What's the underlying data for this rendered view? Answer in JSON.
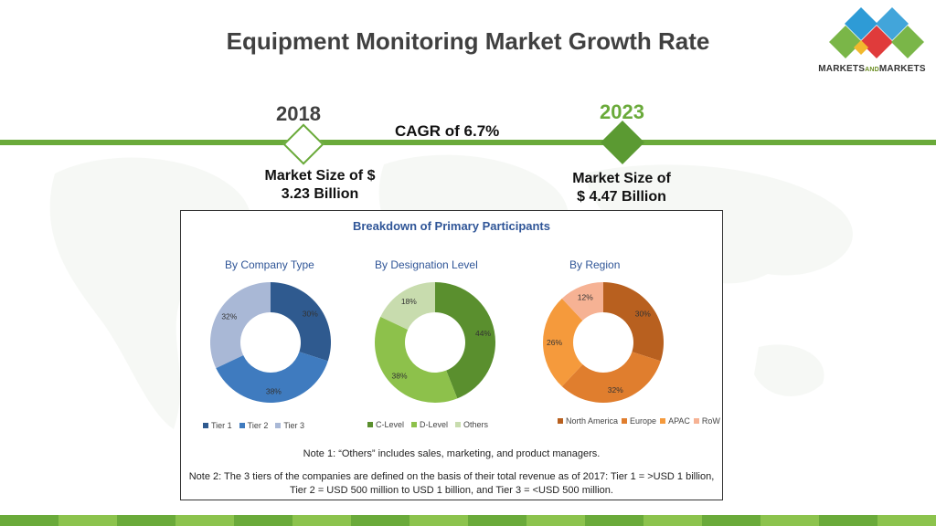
{
  "title": "Equipment Monitoring Market Growth Rate",
  "logo": {
    "brand_a": "MARKETS",
    "brand_b": "AND",
    "brand_c": "MARKETS",
    "colors": [
      "#2e9bd6",
      "#e03b3b",
      "#7ab648",
      "#f2b92e"
    ]
  },
  "timeline": {
    "start_year": "2018",
    "end_year": "2023",
    "cagr": "CAGR of 6.7%",
    "start_size_line1": "Market Size of $",
    "start_size_line2": "3.23 Billion",
    "end_size_line1": "Market Size of",
    "end_size_line2": "$ 4.47 Billion"
  },
  "chart_data": {
    "title": "Breakdown of Primary Participants",
    "charts": [
      {
        "type": "pie",
        "subtitle": "By Company Type",
        "categories": [
          "Tier 1",
          "Tier 2",
          "Tier 3"
        ],
        "values": [
          30,
          38,
          32
        ],
        "labels": [
          "30%",
          "38%",
          "32%"
        ],
        "colors": [
          "#2f5a8f",
          "#3f7bbf",
          "#a9b8d6"
        ]
      },
      {
        "type": "pie",
        "subtitle": "By Designation Level",
        "categories": [
          "C-Level",
          "D-Level",
          "Others"
        ],
        "values": [
          44,
          38,
          18
        ],
        "labels": [
          "44%",
          "38%",
          "18%"
        ],
        "colors": [
          "#5a8f2e",
          "#8dc14b",
          "#c8dcae"
        ]
      },
      {
        "type": "pie",
        "subtitle": "By Region",
        "categories": [
          "North America",
          "Europe",
          "APAC",
          "RoW"
        ],
        "values": [
          30,
          32,
          26,
          12
        ],
        "labels": [
          "30%",
          "32%",
          "26%",
          "12%"
        ],
        "colors": [
          "#b8601f",
          "#e07e2e",
          "#f59a3c",
          "#f6b294"
        ]
      }
    ]
  },
  "notes": {
    "note1": "Note 1: “Others” includes sales, marketing, and product managers.",
    "note2": "Note 2: The 3 tiers of the companies are defined on the basis of their total revenue as of 2017: Tier 1 = >USD 1 billion, Tier 2 = USD 500 million to USD 1 billion, and Tier 3 = <USD 500 million."
  },
  "footer_colors": [
    "#6aaa3a",
    "#8cc34d"
  ]
}
